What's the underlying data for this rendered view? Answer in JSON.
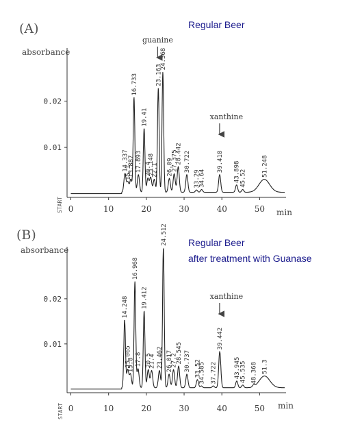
{
  "chart_data": [
    {
      "type": "line",
      "panel_label": "(A)",
      "title": "Regular Beer",
      "subtitle": "",
      "ylabel": "absorbance",
      "xlabel": "min",
      "start_label": "START",
      "xlim": [
        -1,
        57
      ],
      "ylim": [
        -0.0008,
        0.03
      ],
      "xticks": [
        0,
        10,
        20,
        30,
        40,
        50
      ],
      "yticks": [
        0.01,
        0.02
      ],
      "ytick_labels": [
        "0.01",
        "0.02"
      ],
      "annotations": [
        {
          "text": "guanine",
          "x": 23.0,
          "arrow": true
        },
        {
          "text": "xanthine",
          "x": 39.4,
          "arrow": true
        }
      ],
      "peaks": [
        {
          "t": 14.337,
          "h": 0.004,
          "label": "14.337"
        },
        {
          "t": 15.1,
          "h": 0.0022,
          "label": "15.1"
        },
        {
          "t": 15.887,
          "h": 0.0028,
          "label": "15.887"
        },
        {
          "t": 16.733,
          "h": 0.0205,
          "label": "16.733"
        },
        {
          "t": 17.893,
          "h": 0.0038,
          "label": "17.893"
        },
        {
          "t": 19.41,
          "h": 0.0138,
          "label": "19.41"
        },
        {
          "t": 20.4,
          "h": 0.003,
          "label": "20.4"
        },
        {
          "t": 21.148,
          "h": 0.0032,
          "label": "21.148"
        },
        {
          "t": 22.1,
          "h": 0.0028,
          "label": "22.1"
        },
        {
          "t": 23.163,
          "h": 0.0225,
          "label": "23.163"
        },
        {
          "t": 24.368,
          "h": 0.026,
          "label": "24.368"
        },
        {
          "t": 26.09,
          "h": 0.003,
          "label": "26.09"
        },
        {
          "t": 27.375,
          "h": 0.004,
          "label": "27.375"
        },
        {
          "t": 28.442,
          "h": 0.0055,
          "label": "28.442"
        },
        {
          "t": 30.722,
          "h": 0.0038,
          "label": "30.722"
        },
        {
          "t": 33.29,
          "h": 0.0005,
          "label": "33.29"
        },
        {
          "t": 34.64,
          "h": 0.0006,
          "label": "34.64"
        },
        {
          "t": 39.418,
          "h": 0.0038,
          "label": "39.418"
        },
        {
          "t": 43.898,
          "h": 0.0016,
          "label": "43.898"
        },
        {
          "t": 45.52,
          "h": 0.0006,
          "label": "45.52"
        },
        {
          "t": 51.248,
          "h": 0.0028,
          "label": "51.248",
          "wide": true
        }
      ]
    },
    {
      "type": "line",
      "panel_label": "(B)",
      "title": "Regular Beer",
      "subtitle": "after treatment with Guanase",
      "ylabel": "absorbance",
      "xlabel": "min",
      "start_label": "START",
      "xlim": [
        -1,
        57
      ],
      "ylim": [
        -0.0008,
        0.03
      ],
      "xticks": [
        0,
        10,
        20,
        30,
        40,
        50
      ],
      "yticks": [
        0.01,
        0.02
      ],
      "ytick_labels": [
        "0.01",
        "0.02"
      ],
      "annotations": [
        {
          "text": "xanthine",
          "x": 39.4,
          "arrow": true
        }
      ],
      "peaks": [
        {
          "t": 14.248,
          "h": 0.015,
          "label": "14.248"
        },
        {
          "t": 15.065,
          "h": 0.004,
          "label": "15.065"
        },
        {
          "t": 15.8,
          "h": 0.003,
          "label": "15.8"
        },
        {
          "t": 16.968,
          "h": 0.0235,
          "label": "16.968"
        },
        {
          "t": 17.8,
          "h": 0.0042,
          "label": "17.8"
        },
        {
          "t": 19.412,
          "h": 0.017,
          "label": "19.412"
        },
        {
          "t": 20.5,
          "h": 0.004,
          "label": "20.5"
        },
        {
          "t": 21.4,
          "h": 0.0038,
          "label": "21.4"
        },
        {
          "t": 23.462,
          "h": 0.0038,
          "label": "23.462"
        },
        {
          "t": 24.512,
          "h": 0.031,
          "label": "24.512"
        },
        {
          "t": 26.017,
          "h": 0.003,
          "label": "26.017"
        },
        {
          "t": 27.2,
          "h": 0.004,
          "label": "27.2"
        },
        {
          "t": 28.545,
          "h": 0.0048,
          "label": "28.545"
        },
        {
          "t": 30.737,
          "h": 0.003,
          "label": "30.737"
        },
        {
          "t": 33.52,
          "h": 0.0018,
          "label": "33.52"
        },
        {
          "t": 34.585,
          "h": 0.0004,
          "label": "34.585"
        },
        {
          "t": 37.722,
          "h": 0.0004,
          "label": "37.722"
        },
        {
          "t": 39.442,
          "h": 0.008,
          "label": "39.442"
        },
        {
          "t": 43.945,
          "h": 0.0015,
          "label": "43.945"
        },
        {
          "t": 45.535,
          "h": 0.0006,
          "label": "45.535"
        },
        {
          "t": 48.368,
          "h": 0.0004,
          "label": "48.368"
        },
        {
          "t": 51.3,
          "h": 0.0026,
          "label": "51.3",
          "wide": true
        }
      ]
    }
  ]
}
